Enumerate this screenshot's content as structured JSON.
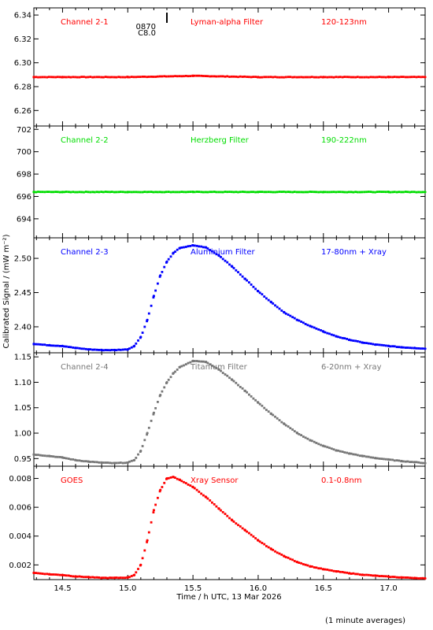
{
  "x_axis": {
    "label": "Time / h UTC, 13 Mar 2026",
    "range": [
      14.28,
      17.28
    ],
    "ticks": [
      14.5,
      15.0,
      15.5,
      16.0,
      16.5,
      17.0
    ],
    "tick_labels": [
      "14.5",
      "15.0",
      "15.5",
      "16.0",
      "16.5",
      "17.0"
    ]
  },
  "y_axis_label": "Calibrated Signal / (mW m⁻²)",
  "footnote": "(1 minute averages)",
  "event_marker": {
    "time": 15.3,
    "labels": [
      "0870",
      "C8.0"
    ]
  },
  "chart_data": [
    {
      "type": "scatter",
      "color": "#ff0000",
      "labels": [
        "Channel 2-1",
        "Lyman-alpha Filter",
        "120-123nm"
      ],
      "ylim": [
        6.247,
        6.346
      ],
      "yticks": [
        6.26,
        6.28,
        6.3,
        6.32,
        6.34
      ],
      "ytick_labels": [
        "6.26",
        "6.28",
        "6.30",
        "6.32",
        "6.34"
      ],
      "x": [
        14.28,
        14.5,
        15.0,
        15.5,
        16.0,
        16.5,
        17.0,
        17.28
      ],
      "y": [
        6.288,
        6.288,
        6.288,
        6.289,
        6.288,
        6.288,
        6.288,
        6.288
      ]
    },
    {
      "type": "scatter",
      "color": "#00dd00",
      "labels": [
        "Channel 2-2",
        "Herzberg Filter",
        "190-222nm"
      ],
      "ylim": [
        692.3,
        702.3
      ],
      "yticks": [
        694,
        696,
        698,
        700,
        702
      ],
      "ytick_labels": [
        "694",
        "696",
        "698",
        "700",
        "702"
      ],
      "x": [
        14.28,
        14.5,
        15.0,
        15.5,
        16.0,
        16.5,
        17.0,
        17.28
      ],
      "y": [
        696.4,
        696.4,
        696.4,
        696.4,
        696.4,
        696.4,
        696.4,
        696.4
      ]
    },
    {
      "type": "scatter",
      "color": "#0000ff",
      "labels": [
        "Channel 2-3",
        "Aluminium Filter",
        "17-80nm + Xray"
      ],
      "ylim": [
        2.362,
        2.53
      ],
      "yticks": [
        2.4,
        2.45,
        2.5
      ],
      "ytick_labels": [
        "2.40",
        "2.45",
        "2.50"
      ],
      "x": [
        14.28,
        14.4,
        14.5,
        14.6,
        14.7,
        14.8,
        14.9,
        15.0,
        15.05,
        15.1,
        15.15,
        15.2,
        15.25,
        15.3,
        15.35,
        15.4,
        15.5,
        15.6,
        15.7,
        15.8,
        15.9,
        16.0,
        16.1,
        16.2,
        16.3,
        16.4,
        16.5,
        16.6,
        16.7,
        16.8,
        16.9,
        17.0,
        17.1,
        17.2,
        17.28
      ],
      "y": [
        2.375,
        2.373,
        2.372,
        2.369,
        2.367,
        2.366,
        2.366,
        2.367,
        2.372,
        2.385,
        2.41,
        2.445,
        2.475,
        2.495,
        2.508,
        2.515,
        2.519,
        2.516,
        2.504,
        2.488,
        2.47,
        2.452,
        2.436,
        2.421,
        2.41,
        2.401,
        2.393,
        2.386,
        2.381,
        2.377,
        2.374,
        2.372,
        2.37,
        2.369,
        2.368
      ]
    },
    {
      "type": "scatter",
      "color": "#777777",
      "labels": [
        "Channel 2-4",
        "Titanium Filter",
        "6-20nm + Xray"
      ],
      "ylim": [
        0.935,
        1.158
      ],
      "yticks": [
        0.95,
        1.0,
        1.05,
        1.1,
        1.15
      ],
      "ytick_labels": [
        "0.95",
        "1.00",
        "1.05",
        "1.10",
        "1.15"
      ],
      "x": [
        14.28,
        14.4,
        14.5,
        14.6,
        14.7,
        14.8,
        14.9,
        15.0,
        15.05,
        15.1,
        15.15,
        15.2,
        15.25,
        15.3,
        15.35,
        15.4,
        15.5,
        15.6,
        15.7,
        15.8,
        15.9,
        16.0,
        16.1,
        16.2,
        16.3,
        16.4,
        16.5,
        16.6,
        16.7,
        16.8,
        16.9,
        17.0,
        17.1,
        17.2,
        17.28
      ],
      "y": [
        0.958,
        0.955,
        0.952,
        0.947,
        0.944,
        0.942,
        0.941,
        0.942,
        0.947,
        0.965,
        1.0,
        1.04,
        1.075,
        1.1,
        1.118,
        1.13,
        1.142,
        1.14,
        1.125,
        1.105,
        1.083,
        1.06,
        1.038,
        1.018,
        1.0,
        0.986,
        0.975,
        0.966,
        0.96,
        0.955,
        0.951,
        0.948,
        0.945,
        0.943,
        0.941
      ]
    },
    {
      "type": "scatter",
      "color": "#ff0000",
      "labels": [
        "GOES",
        "Xray Sensor",
        "0.1-0.8nm"
      ],
      "ylim": [
        0.00098,
        0.00885
      ],
      "yticks": [
        0.002,
        0.004,
        0.006,
        0.008
      ],
      "ytick_labels": [
        "0.002",
        "0.004",
        "0.006",
        "0.008"
      ],
      "x": [
        14.28,
        14.4,
        14.5,
        14.6,
        14.7,
        14.8,
        14.9,
        15.0,
        15.05,
        15.1,
        15.15,
        15.2,
        15.25,
        15.3,
        15.35,
        15.4,
        15.5,
        15.6,
        15.7,
        15.8,
        15.9,
        16.0,
        16.1,
        16.2,
        16.3,
        16.4,
        16.5,
        16.6,
        16.7,
        16.8,
        16.9,
        17.0,
        17.1,
        17.2,
        17.28
      ],
      "y": [
        0.00145,
        0.00135,
        0.0013,
        0.0012,
        0.00115,
        0.0011,
        0.0011,
        0.00112,
        0.0013,
        0.002,
        0.0037,
        0.0058,
        0.0072,
        0.008,
        0.0081,
        0.0079,
        0.0074,
        0.0067,
        0.0059,
        0.0051,
        0.0044,
        0.0037,
        0.0031,
        0.0026,
        0.0022,
        0.0019,
        0.0017,
        0.00155,
        0.00142,
        0.00132,
        0.00125,
        0.00118,
        0.00113,
        0.00109,
        0.00106
      ]
    }
  ]
}
